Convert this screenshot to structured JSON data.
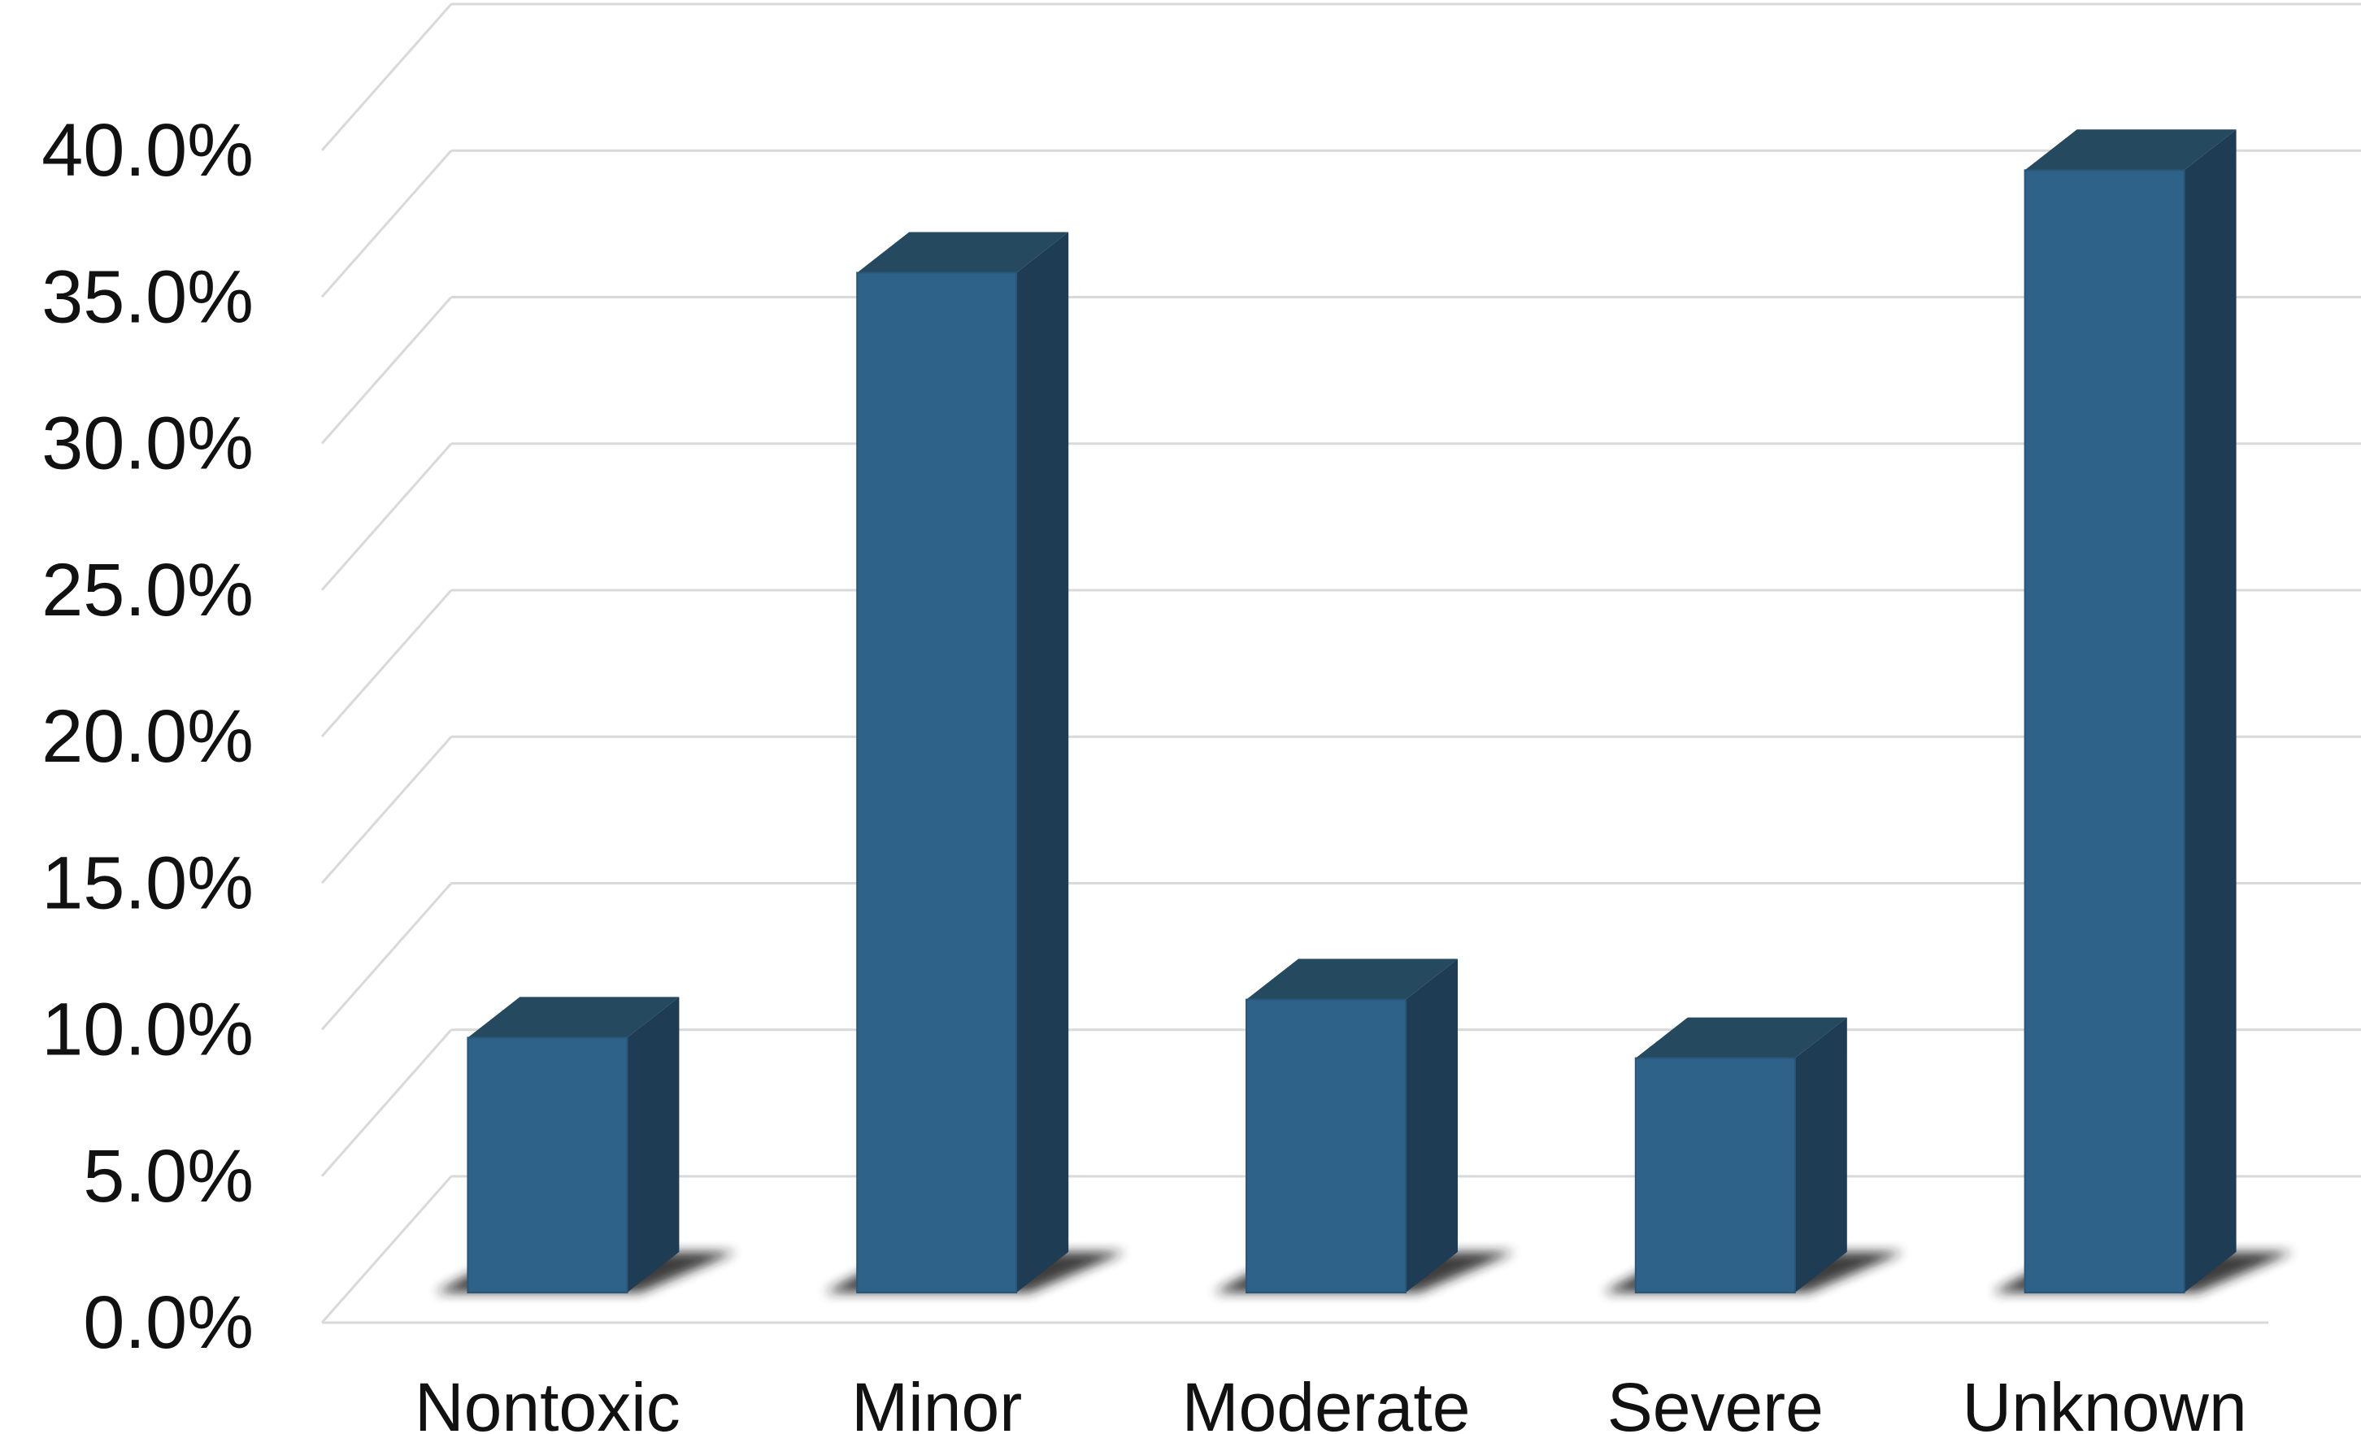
{
  "chart_data": {
    "type": "bar",
    "style": "3d-column",
    "categories": [
      "Nontoxic",
      "Minor",
      "Moderate",
      "Severe",
      "Unknown"
    ],
    "values": [
      8.7,
      34.8,
      10.0,
      8.0,
      38.3
    ],
    "y_tick_labels": [
      "0.0%",
      "5.0%",
      "10.0%",
      "15.0%",
      "20.0%",
      "25.0%",
      "30.0%",
      "35.0%",
      "40.0%"
    ],
    "y_ticks": [
      0,
      5,
      10,
      15,
      20,
      25,
      30,
      35,
      40
    ],
    "ylim": [
      0,
      40
    ],
    "grid": true,
    "legend": "none",
    "colors": {
      "bar_front": "#2e6289",
      "bar_side": "#1f3c55",
      "bar_top": "#25495f",
      "grid": "#d9d9d9",
      "shadow": "#1a1a1a"
    }
  }
}
